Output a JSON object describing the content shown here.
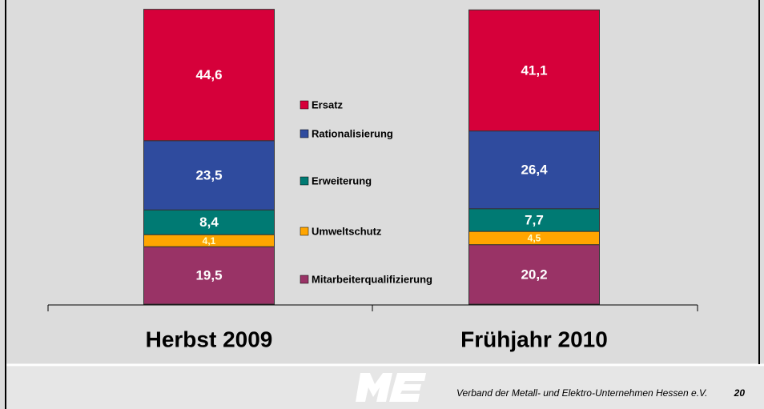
{
  "chart_data": {
    "type": "stacked_bar",
    "categories": [
      "Herbst 2009",
      "Frühjahr 2010"
    ],
    "series": [
      {
        "name": "Mitarbeiterqualifizierung",
        "color": "#993366",
        "values": [
          19.5,
          20.2
        ],
        "value_labels": [
          "19,5",
          "20,2"
        ]
      },
      {
        "name": "Umweltschutz",
        "color": "#ffa500",
        "values": [
          4.1,
          4.5
        ],
        "value_labels": [
          "4,1",
          "4,5"
        ]
      },
      {
        "name": "Erweiterung",
        "color": "#007a73",
        "values": [
          8.4,
          7.7
        ],
        "value_labels": [
          "8,4",
          "7,7"
        ]
      },
      {
        "name": "Rationalisierung",
        "color": "#2f4b9e",
        "values": [
          23.5,
          26.4
        ],
        "value_labels": [
          "23,5",
          "26,4"
        ]
      },
      {
        "name": "Ersatz",
        "color": "#d6003a",
        "values": [
          44.6,
          41.1
        ],
        "value_labels": [
          "44,6",
          "41,1"
        ]
      }
    ],
    "ylim": [
      0,
      100
    ]
  },
  "footer": {
    "text": "Verband der Metall- und Elektro-Unternehmen Hessen e.V.",
    "page": 20
  }
}
